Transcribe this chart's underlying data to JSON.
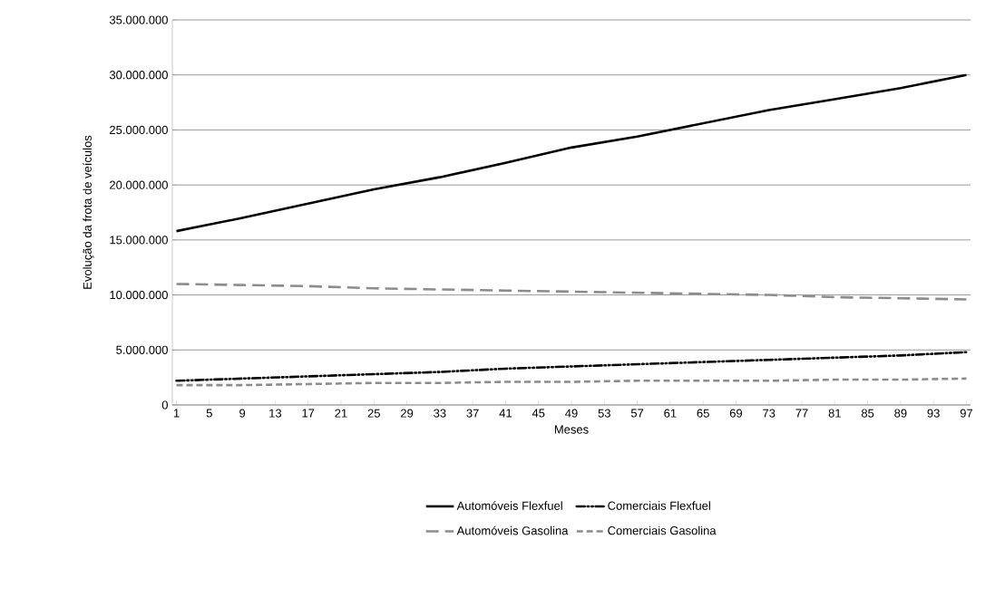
{
  "chart_data": {
    "type": "line",
    "xlabel": "Meses",
    "ylabel": "Evolução da frota de veículos",
    "xlim": [
      0.5,
      97.5
    ],
    "xticks": [
      1,
      5,
      9,
      13,
      17,
      21,
      25,
      29,
      33,
      37,
      41,
      45,
      49,
      53,
      57,
      61,
      65,
      69,
      73,
      77,
      81,
      85,
      89,
      93,
      97
    ],
    "ylim": [
      0,
      35000000
    ],
    "yticks": [
      0,
      {
        "value": 5000000,
        "label": "5.000.000"
      },
      {
        "value": 10000000,
        "label": "10.000.000"
      },
      {
        "value": 15000000,
        "label": "15.000.000"
      },
      {
        "value": 20000000,
        "label": "20.000.000"
      },
      {
        "value": 25000000,
        "label": "25.000.000"
      },
      {
        "value": 30000000,
        "label": "30.000.000"
      },
      {
        "value": 35000000,
        "label": "35.000.000"
      }
    ],
    "grid": "y",
    "legend": "bottom",
    "marker": "none",
    "x": [
      1,
      9,
      17,
      25,
      33,
      41,
      49,
      57,
      65,
      73,
      81,
      89,
      97
    ],
    "series": [
      {
        "name": "Automóveis Flexfuel",
        "color": "#000000",
        "line_style": "solid",
        "values": [
          15800000,
          17000000,
          18300000,
          19600000,
          20700000,
          22000000,
          23400000,
          24400000,
          25600000,
          26800000,
          27800000,
          28800000,
          30000000
        ]
      },
      {
        "name": "Comerciais Flexfuel",
        "color": "#000000",
        "line_style": "dashdot",
        "values": [
          2200000,
          2400000,
          2600000,
          2800000,
          3000000,
          3300000,
          3500000,
          3700000,
          3900000,
          4100000,
          4300000,
          4500000,
          4800000
        ]
      },
      {
        "name": "Automóveis Gasolina",
        "color": "#8c8c8c",
        "line_style": "longdash",
        "values": [
          11000000,
          10900000,
          10800000,
          10600000,
          10500000,
          10400000,
          10300000,
          10200000,
          10100000,
          10000000,
          9800000,
          9700000,
          9600000
        ]
      },
      {
        "name": "Comerciais Gasolina",
        "color": "#8c8c8c",
        "line_style": "dashed",
        "values": [
          1800000,
          1800000,
          1900000,
          2000000,
          2000000,
          2100000,
          2100000,
          2200000,
          2200000,
          2200000,
          2300000,
          2300000,
          2400000
        ]
      }
    ]
  }
}
